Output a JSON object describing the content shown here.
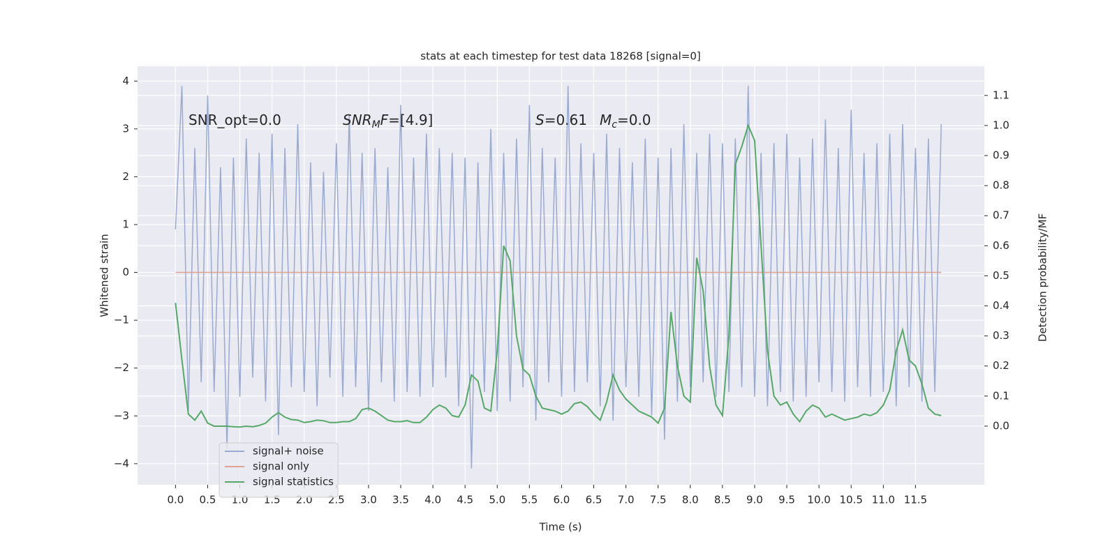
{
  "chart_data": {
    "type": "line",
    "title": "stats at each timestep for test data 18268 [signal=0]",
    "xlabel": "Time (s)",
    "ylabel": "Whitened strain",
    "y2label": "Detection probability/MF",
    "annotations": [
      [
        "SNR_opt=0.0"
      ],
      [
        "SNR",
        "M",
        "F=[4.9]"
      ],
      [
        "S",
        "=0.61"
      ],
      [
        "M",
        "c",
        "=0.0"
      ]
    ],
    "x": [
      0.0,
      0.1,
      0.2,
      0.3,
      0.4,
      0.5,
      0.6,
      0.7,
      0.8,
      0.9,
      1.0,
      1.1,
      1.2,
      1.3,
      1.4,
      1.5,
      1.6,
      1.7,
      1.8,
      1.9,
      2.0,
      2.1,
      2.2,
      2.3,
      2.4,
      2.5,
      2.6,
      2.7,
      2.8,
      2.9,
      3.0,
      3.1,
      3.2,
      3.3,
      3.4,
      3.5,
      3.6,
      3.7,
      3.8,
      3.9,
      4.0,
      4.1,
      4.2,
      4.3,
      4.4,
      4.5,
      4.6,
      4.7,
      4.8,
      4.9,
      5.0,
      5.1,
      5.2,
      5.3,
      5.4,
      5.5,
      5.6,
      5.7,
      5.8,
      5.9,
      6.0,
      6.1,
      6.2,
      6.3,
      6.4,
      6.5,
      6.6,
      6.7,
      6.8,
      6.9,
      7.0,
      7.1,
      7.2,
      7.3,
      7.4,
      7.5,
      7.6,
      7.7,
      7.8,
      7.9,
      8.0,
      8.1,
      8.2,
      8.3,
      8.4,
      8.5,
      8.6,
      8.7,
      8.8,
      8.9,
      9.0,
      9.1,
      9.2,
      9.3,
      9.4,
      9.5,
      9.6,
      9.7,
      9.8,
      9.9,
      10.0,
      10.1,
      10.2,
      10.3,
      10.4,
      10.5,
      10.6,
      10.7,
      10.8,
      10.9,
      11.0,
      11.1,
      11.2,
      11.3,
      11.4,
      11.5,
      11.6,
      11.7,
      11.8,
      11.9
    ],
    "series": [
      {
        "name": "signal+ noise",
        "color": "#9aaad0",
        "axis": "y",
        "values": [
          0.9,
          3.9,
          -2.9,
          2.6,
          -2.3,
          3.7,
          -2.5,
          2.2,
          -3.7,
          2.4,
          -2.6,
          2.8,
          -2.2,
          2.5,
          -2.7,
          2.9,
          -3.4,
          2.6,
          -2.4,
          3.1,
          -2.5,
          2.3,
          -2.8,
          2.1,
          -2.2,
          2.7,
          -2.6,
          3.3,
          -2.4,
          2.5,
          -2.9,
          2.6,
          -2.3,
          2.2,
          -2.7,
          3.5,
          -2.5,
          2.4,
          -2.6,
          2.9,
          -2.4,
          2.6,
          -2.2,
          2.5,
          -2.8,
          2.4,
          -4.1,
          2.3,
          -2.5,
          3.0,
          -2.9,
          2.5,
          -2.7,
          2.8,
          -2.4,
          3.5,
          -3.1,
          2.6,
          -2.3,
          2.4,
          -2.6,
          3.9,
          -2.5,
          2.7,
          -2.3,
          2.5,
          -2.8,
          2.9,
          -3.1,
          2.6,
          -2.4,
          2.3,
          -2.6,
          2.8,
          -3.0,
          2.4,
          -3.5,
          2.6,
          -2.7,
          3.1,
          -2.4,
          2.5,
          -2.3,
          2.9,
          -2.6,
          2.7,
          -2.5,
          2.8,
          -2.4,
          3.9,
          -2.6,
          2.5,
          -2.8,
          2.7,
          -2.5,
          2.9,
          -2.7,
          2.4,
          -2.6,
          2.8,
          -2.3,
          3.2,
          -2.5,
          2.6,
          -2.7,
          3.4,
          -2.4,
          2.5,
          -2.6,
          2.7,
          -2.5,
          2.9,
          -2.8,
          3.1,
          -2.4,
          2.6,
          -2.7,
          2.8,
          -2.5,
          3.1
        ]
      },
      {
        "name": "signal only",
        "color": "#dda391",
        "axis": "y",
        "values": [
          0,
          0,
          0,
          0,
          0,
          0,
          0,
          0,
          0,
          0,
          0,
          0,
          0,
          0,
          0,
          0,
          0,
          0,
          0,
          0,
          0,
          0,
          0,
          0,
          0,
          0,
          0,
          0,
          0,
          0,
          0,
          0,
          0,
          0,
          0,
          0,
          0,
          0,
          0,
          0,
          0,
          0,
          0,
          0,
          0,
          0,
          0,
          0,
          0,
          0,
          0,
          0,
          0,
          0,
          0,
          0,
          0,
          0,
          0,
          0,
          0,
          0,
          0,
          0,
          0,
          0,
          0,
          0,
          0,
          0,
          0,
          0,
          0,
          0,
          0,
          0,
          0,
          0,
          0,
          0,
          0,
          0,
          0,
          0,
          0,
          0,
          0,
          0,
          0,
          0,
          0,
          0,
          0,
          0,
          0,
          0,
          0,
          0,
          0,
          0,
          0,
          0,
          0,
          0,
          0,
          0,
          0,
          0,
          0,
          0,
          0,
          0,
          0,
          0,
          0,
          0,
          0,
          0,
          0,
          0
        ]
      },
      {
        "name": "signal statistics",
        "color": "#55a868",
        "axis": "y2",
        "values": [
          0.41,
          0.22,
          0.04,
          0.02,
          0.05,
          0.01,
          0,
          0,
          0,
          -0.002,
          -0.003,
          0,
          -0.002,
          0.002,
          0.01,
          0.03,
          0.045,
          0.03,
          0.022,
          0.02,
          0.012,
          0.015,
          0.02,
          0.018,
          0.012,
          0.012,
          0.015,
          0.015,
          0.025,
          0.055,
          0.06,
          0.05,
          0.035,
          0.02,
          0.015,
          0.015,
          0.018,
          0.012,
          0.012,
          0.03,
          0.055,
          0.07,
          0.06,
          0.035,
          0.03,
          0.07,
          0.17,
          0.15,
          0.06,
          0.05,
          0.25,
          0.6,
          0.55,
          0.3,
          0.19,
          0.17,
          0.1,
          0.06,
          0.055,
          0.05,
          0.04,
          0.05,
          0.075,
          0.08,
          0.065,
          0.04,
          0.02,
          0.08,
          0.17,
          0.12,
          0.09,
          0.07,
          0.05,
          0.04,
          0.03,
          0.01,
          0.06,
          0.38,
          0.2,
          0.1,
          0.08,
          0.56,
          0.45,
          0.2,
          0.07,
          0.035,
          0.3,
          0.87,
          0.93,
          1.0,
          0.95,
          0.6,
          0.25,
          0.1,
          0.07,
          0.08,
          0.04,
          0.015,
          0.05,
          0.07,
          0.06,
          0.03,
          0.04,
          0.03,
          0.02,
          0.025,
          0.03,
          0.04,
          0.035,
          0.045,
          0.07,
          0.12,
          0.25,
          0.32,
          0.22,
          0.2,
          0.14,
          0.06,
          0.04,
          0.035
        ]
      }
    ],
    "xlim": [
      -0.59,
      12.57
    ],
    "xticks": [
      {
        "value": 0,
        "label": "0.0"
      },
      0.5,
      {
        "value": 1,
        "label": "1.0"
      },
      1.5,
      {
        "value": 2,
        "label": "2.0"
      },
      2.5,
      {
        "value": 3,
        "label": "3.0"
      },
      3.5,
      {
        "value": 4,
        "label": "4.0"
      },
      4.5,
      {
        "value": 5,
        "label": "5.0"
      },
      5.5,
      {
        "value": 6,
        "label": "6.0"
      },
      6.5,
      {
        "value": 7,
        "label": "7.0"
      },
      7.5,
      {
        "value": 8,
        "label": "8.0"
      },
      8.5,
      {
        "value": 9,
        "label": "9.0"
      },
      9.5,
      {
        "value": 10,
        "label": "10.0"
      },
      10.5,
      {
        "value": 11,
        "label": "11.0"
      },
      11.5
    ],
    "ylim": [
      -4.44,
      4.31
    ],
    "yticks": [
      {
        "value": -4,
        "label": "−4"
      },
      {
        "value": -3,
        "label": "−3"
      },
      {
        "value": -2,
        "label": "−2"
      },
      {
        "value": -1,
        "label": "−1"
      },
      0,
      1,
      2,
      3,
      4
    ],
    "y2lim": [
      -0.195,
      1.197
    ],
    "y2ticks": [
      {
        "value": 0,
        "label": "0.0"
      },
      0.1,
      0.2,
      0.3,
      0.4,
      0.5,
      0.6,
      0.7,
      0.8,
      0.9,
      {
        "value": 1,
        "label": "1.0"
      },
      1.1
    ],
    "grid": true,
    "legend": "lower left"
  }
}
